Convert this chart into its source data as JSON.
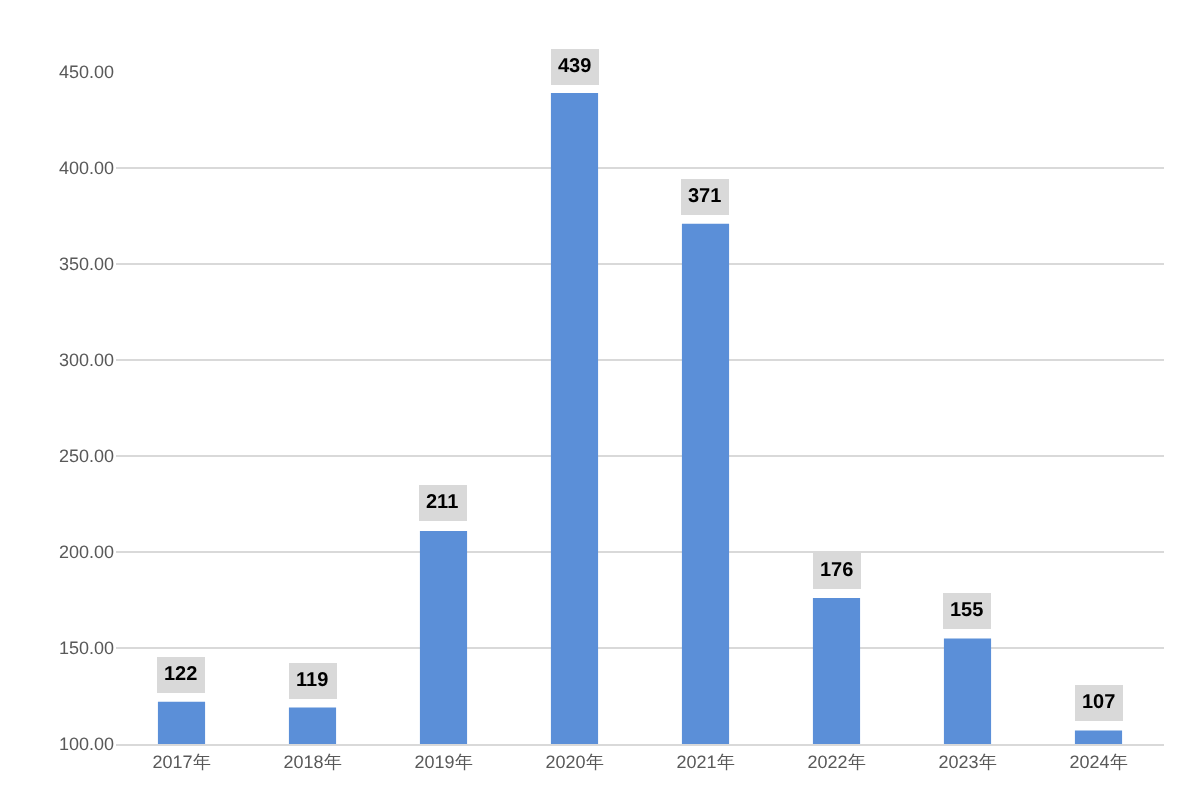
{
  "chart_data": {
    "type": "bar",
    "categories": [
      "2017年",
      "2018年",
      "2019年",
      "2020年",
      "2021年",
      "2022年",
      "2023年",
      "2024年"
    ],
    "values": [
      122,
      119,
      211,
      439,
      371,
      176,
      155,
      107
    ],
    "color": "#5b8fd8",
    "ylim": [
      100,
      450
    ],
    "yticks": [
      {
        "value": 100,
        "label": "100.00"
      },
      {
        "value": 150,
        "label": "150.00"
      },
      {
        "value": 200,
        "label": "200.00"
      },
      {
        "value": 250,
        "label": "250.00"
      },
      {
        "value": 300,
        "label": "300.00"
      },
      {
        "value": 350,
        "label": "350.00"
      },
      {
        "value": 400,
        "label": "400.00"
      },
      {
        "value": 450,
        "label": "450.00"
      }
    ],
    "grid": "y",
    "data_labels": true
  }
}
